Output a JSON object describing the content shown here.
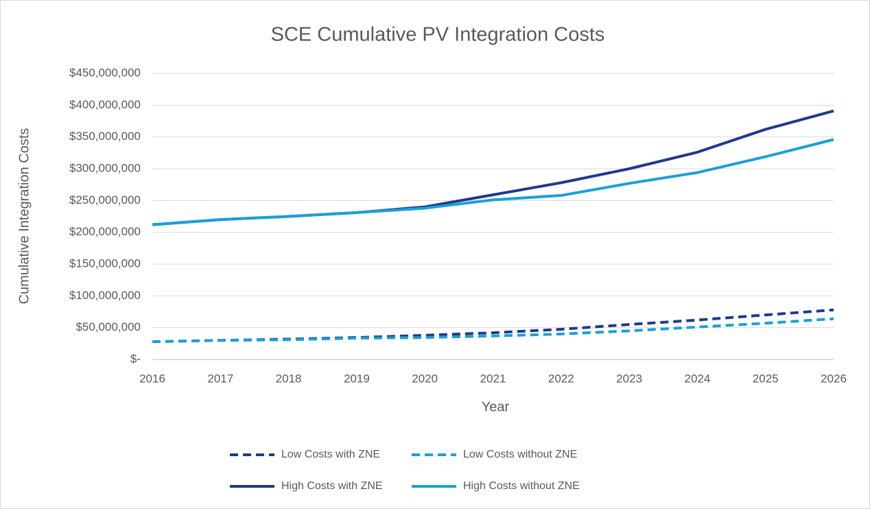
{
  "chart_data": {
    "type": "line",
    "title": "SCE Cumulative PV Integration Costs",
    "x_label": "Year",
    "y_label": "Cumulative Integration Costs",
    "x": [
      2016,
      2017,
      2018,
      2019,
      2020,
      2021,
      2022,
      2023,
      2024,
      2025,
      2026
    ],
    "xlim": [
      2016,
      2026
    ],
    "xticks": [
      2016,
      2017,
      2018,
      2019,
      2020,
      2021,
      2022,
      2023,
      2024,
      2025,
      2026
    ],
    "ylim": [
      0,
      450000000
    ],
    "yticks": [
      {
        "value": 0,
        "label": "$-"
      },
      {
        "value": 50000000,
        "label": "$50,000,000"
      },
      {
        "value": 100000000,
        "label": "$100,000,000"
      },
      {
        "value": 150000000,
        "label": "$150,000,000"
      },
      {
        "value": 200000000,
        "label": "$200,000,000"
      },
      {
        "value": 250000000,
        "label": "$250,000,000"
      },
      {
        "value": 300000000,
        "label": "$300,000,000"
      },
      {
        "value": 350000000,
        "label": "$350,000,000"
      },
      {
        "value": 400000000,
        "label": "$400,000,000"
      },
      {
        "value": 450000000,
        "label": "$450,000,000"
      }
    ],
    "grid": true,
    "legend": "bottom",
    "series": [
      {
        "name": "Low Costs with ZNE",
        "color": "#1f3a8a",
        "dash": true,
        "values": [
          28000000,
          30000000,
          32000000,
          34500000,
          38000000,
          42000000,
          47500000,
          55000000,
          62000000,
          70000000,
          78000000
        ]
      },
      {
        "name": "Low Costs without ZNE",
        "color": "#1aa0da",
        "dash": true,
        "values": [
          28000000,
          30000000,
          31000000,
          33500000,
          34500000,
          37000000,
          40000000,
          45000000,
          51000000,
          57000000,
          64000000
        ]
      },
      {
        "name": "High Costs with ZNE",
        "color": "#1f3a8a",
        "dash": false,
        "values": [
          212000000,
          220000000,
          225000000,
          231000000,
          240000000,
          259000000,
          278000000,
          300000000,
          326000000,
          362000000,
          391000000
        ]
      },
      {
        "name": "High Costs without ZNE",
        "color": "#1aa0da",
        "dash": false,
        "values": [
          212000000,
          220000000,
          225000000,
          231000000,
          238000000,
          251000000,
          258000000,
          277000000,
          294000000,
          319000000,
          346000000
        ]
      }
    ]
  }
}
